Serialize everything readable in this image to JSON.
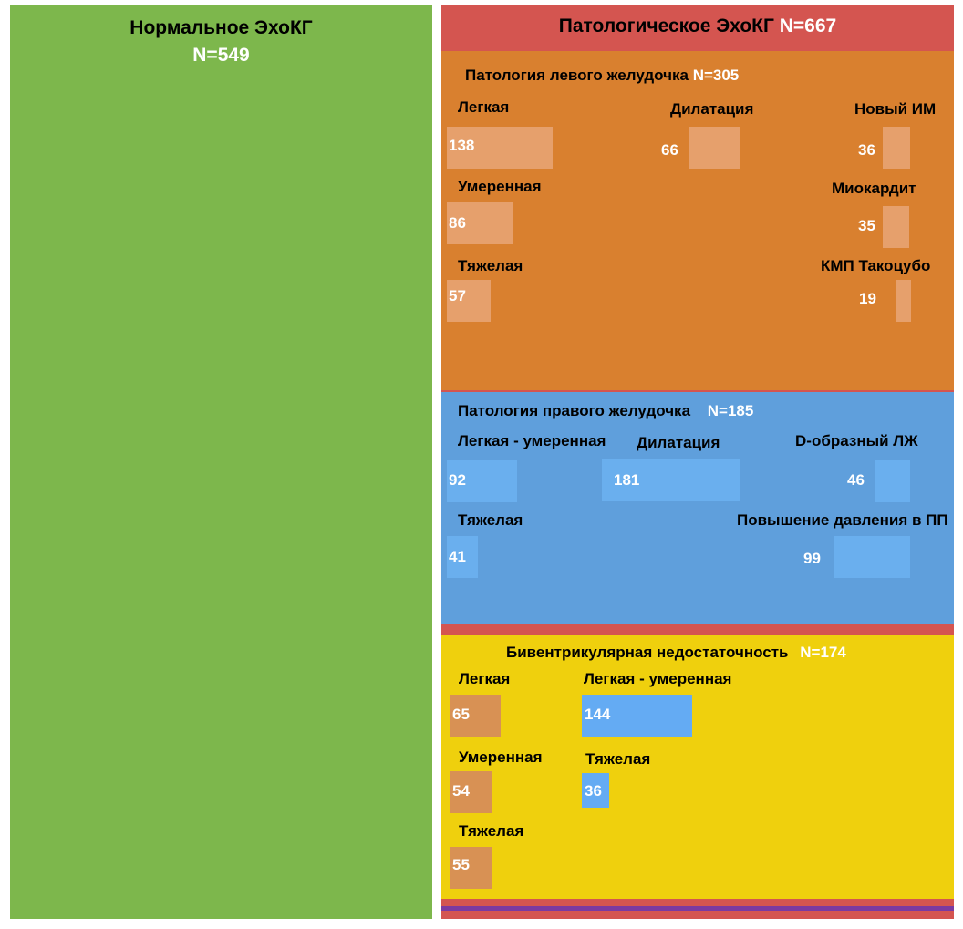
{
  "colors": {
    "normal": "#7db74c",
    "pathology": "#d45550",
    "left_ventricle": "#d9802f",
    "right_ventricle": "#5f9fdc",
    "biventricular": "#efd00d",
    "stripe": "#7b3aa0"
  },
  "normal": {
    "title": "Нормальное ЭхоКГ",
    "count": "N=549"
  },
  "pathology": {
    "title": "Патологическое ЭхоКГ",
    "count": "N=667"
  },
  "left_ventricle": {
    "title": "Патология левого желудочка",
    "count": "N=305",
    "items": [
      {
        "label": "Легкая",
        "value": 138
      },
      {
        "label": "Умеренная",
        "value": 86
      },
      {
        "label": "Тяжелая",
        "value": 57
      },
      {
        "label": "Дилатация",
        "value": 66
      },
      {
        "label": "Новый ИМ",
        "value": 36
      },
      {
        "label": "Миокардит",
        "value": 35
      },
      {
        "label": "КМП Такоцубо",
        "value": 19
      }
    ]
  },
  "right_ventricle": {
    "title": "Патология  правого желудочка",
    "count": "N=185",
    "items": [
      {
        "label": "Легкая - умеренная",
        "value": 92
      },
      {
        "label": "Тяжелая",
        "value": 41
      },
      {
        "label": "Дилатация",
        "value": 181
      },
      {
        "label": "D-образный ЛЖ",
        "value": 46
      },
      {
        "label": "Повышение давления в ПП",
        "value": 99
      }
    ]
  },
  "biventricular": {
    "title": "Бивентрикулярная недостаточность",
    "count": "N=174",
    "left_items": [
      {
        "label": "Легкая",
        "value": 65
      },
      {
        "label": "Умеренная",
        "value": 54
      },
      {
        "label": "Тяжелая",
        "value": 55
      }
    ],
    "right_items": [
      {
        "label": "Легкая - умеренная",
        "value": 144
      },
      {
        "label": "Тяжелая",
        "value": 36
      }
    ]
  }
}
